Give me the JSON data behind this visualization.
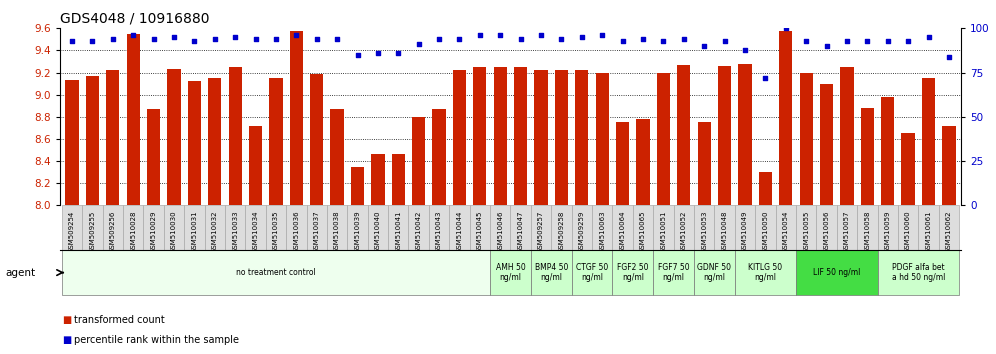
{
  "title": "GDS4048 / 10916880",
  "samples": [
    "GSM509254",
    "GSM509255",
    "GSM509256",
    "GSM510028",
    "GSM510029",
    "GSM510030",
    "GSM510031",
    "GSM510032",
    "GSM510033",
    "GSM510034",
    "GSM510035",
    "GSM510036",
    "GSM510037",
    "GSM510038",
    "GSM510039",
    "GSM510040",
    "GSM510041",
    "GSM510042",
    "GSM510043",
    "GSM510044",
    "GSM510045",
    "GSM510046",
    "GSM510047",
    "GSM509257",
    "GSM509258",
    "GSM509259",
    "GSM510063",
    "GSM510064",
    "GSM510065",
    "GSM510051",
    "GSM510052",
    "GSM510053",
    "GSM510048",
    "GSM510049",
    "GSM510050",
    "GSM510054",
    "GSM510055",
    "GSM510056",
    "GSM510057",
    "GSM510058",
    "GSM510059",
    "GSM510060",
    "GSM510061",
    "GSM510062"
  ],
  "bar_values": [
    9.13,
    9.17,
    9.22,
    9.55,
    8.87,
    9.23,
    9.12,
    9.15,
    9.25,
    8.72,
    9.15,
    9.58,
    9.19,
    8.87,
    8.35,
    8.46,
    8.46,
    8.8,
    8.87,
    9.22,
    9.25,
    9.25,
    9.25,
    9.22,
    9.22,
    9.22,
    9.2,
    8.75,
    8.78,
    9.2,
    9.27,
    8.75,
    9.26,
    9.28,
    8.3,
    9.58,
    9.2,
    9.1,
    9.25,
    8.88,
    8.98,
    8.65,
    9.15,
    8.72
  ],
  "percentile_values": [
    93,
    93,
    94,
    96,
    94,
    95,
    93,
    94,
    95,
    94,
    94,
    96,
    94,
    94,
    85,
    86,
    86,
    91,
    94,
    94,
    96,
    96,
    94,
    96,
    94,
    95,
    96,
    93,
    94,
    93,
    94,
    90,
    93,
    88,
    72,
    100,
    93,
    90,
    93,
    93,
    93,
    93,
    95,
    84
  ],
  "ylim_left": [
    8.0,
    9.6
  ],
  "ylim_right": [
    0,
    100
  ],
  "yticks_left": [
    8.0,
    8.2,
    8.4,
    8.6,
    8.8,
    9.0,
    9.2,
    9.4,
    9.6
  ],
  "yticks_right": [
    0,
    25,
    50,
    75,
    100
  ],
  "bar_color": "#cc2200",
  "dot_color": "#0000cc",
  "grid_y_values": [
    8.2,
    8.4,
    8.6,
    8.8,
    9.0,
    9.2,
    9.4
  ],
  "agent_groups": [
    {
      "label": "no treatment control",
      "start": 0,
      "end": 21,
      "color": "#eeffee"
    },
    {
      "label": "AMH 50\nng/ml",
      "start": 21,
      "end": 23,
      "color": "#ccffcc"
    },
    {
      "label": "BMP4 50\nng/ml",
      "start": 23,
      "end": 25,
      "color": "#ccffcc"
    },
    {
      "label": "CTGF 50\nng/ml",
      "start": 25,
      "end": 27,
      "color": "#ccffcc"
    },
    {
      "label": "FGF2 50\nng/ml",
      "start": 27,
      "end": 29,
      "color": "#ccffcc"
    },
    {
      "label": "FGF7 50\nng/ml",
      "start": 29,
      "end": 31,
      "color": "#ccffcc"
    },
    {
      "label": "GDNF 50\nng/ml",
      "start": 31,
      "end": 33,
      "color": "#ccffcc"
    },
    {
      "label": "KITLG 50\nng/ml",
      "start": 33,
      "end": 36,
      "color": "#ccffcc"
    },
    {
      "label": "LIF 50 ng/ml",
      "start": 36,
      "end": 40,
      "color": "#44dd44"
    },
    {
      "label": "PDGF alfa bet\na hd 50 ng/ml",
      "start": 40,
      "end": 44,
      "color": "#ccffcc"
    }
  ],
  "legend_labels": [
    "transformed count",
    "percentile rank within the sample"
  ],
  "legend_colors": [
    "#cc2200",
    "#0000cc"
  ],
  "left_tick_color": "#cc2200",
  "right_tick_color": "#0000cc",
  "tick_label_bg": "#dddddd",
  "tick_label_border": "#aaaaaa"
}
